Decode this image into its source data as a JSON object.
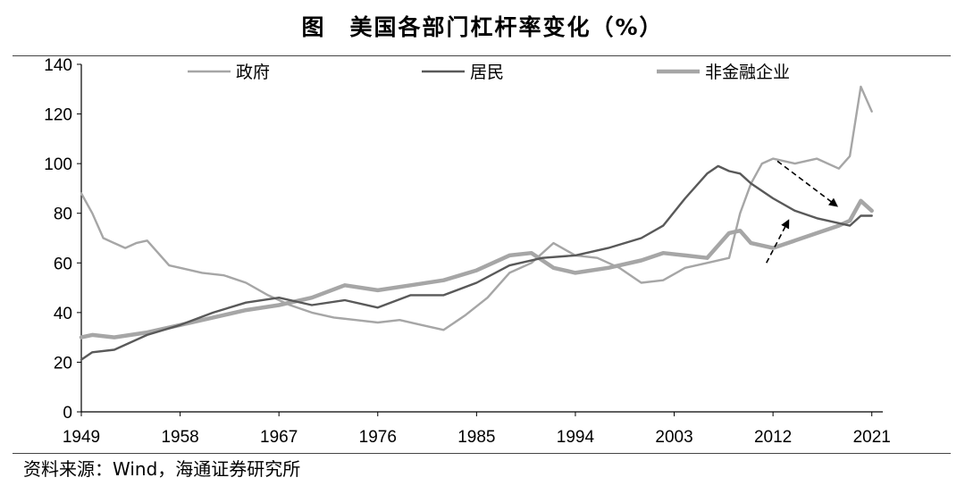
{
  "header": {
    "title": "图　美国各部门杠杆率变化（%）"
  },
  "footer": {
    "source": "资料来源：Wind，海通证券研究所"
  },
  "chart_data": {
    "type": "line",
    "title": "图　美国各部门杠杆率变化（%）",
    "xlabel": "",
    "ylabel": "",
    "xlim": [
      1949,
      2022
    ],
    "ylim": [
      0,
      140
    ],
    "yticks": [
      0,
      20,
      40,
      60,
      80,
      100,
      120,
      140
    ],
    "xticks": [
      1949,
      1958,
      1967,
      1976,
      1985,
      1994,
      2003,
      2012,
      2021
    ],
    "grid": false,
    "legend": "top",
    "series": [
      {
        "name": "政府",
        "color": "#a6a6a6",
        "width": 2.4,
        "x": [
          1949,
          1950,
          1951,
          1952,
          1953,
          1954,
          1955,
          1956,
          1957,
          1958,
          1960,
          1962,
          1964,
          1966,
          1968,
          1970,
          1972,
          1974,
          1976,
          1978,
          1980,
          1982,
          1984,
          1986,
          1988,
          1990,
          1992,
          1994,
          1996,
          1998,
          2000,
          2002,
          2004,
          2006,
          2008,
          2009,
          2010,
          2011,
          2012,
          2014,
          2016,
          2018,
          2019,
          2020,
          2021
        ],
        "values": [
          88,
          80,
          70,
          68,
          66,
          68,
          69,
          64,
          59,
          58,
          56,
          55,
          52,
          47,
          43,
          40,
          38,
          37,
          36,
          37,
          35,
          33,
          39,
          46,
          56,
          60,
          68,
          63,
          62,
          58,
          52,
          53,
          58,
          60,
          62,
          80,
          92,
          100,
          102,
          100,
          102,
          98,
          103,
          131,
          121
        ]
      },
      {
        "name": "居民",
        "color": "#595959",
        "width": 2.4,
        "x": [
          1949,
          1950,
          1952,
          1955,
          1958,
          1961,
          1964,
          1967,
          1970,
          1973,
          1976,
          1979,
          1982,
          1985,
          1988,
          1991,
          1994,
          1997,
          2000,
          2002,
          2004,
          2006,
          2007,
          2008,
          2009,
          2010,
          2012,
          2014,
          2016,
          2018,
          2019,
          2020,
          2021
        ],
        "values": [
          21,
          24,
          25,
          31,
          35,
          40,
          44,
          46,
          43,
          45,
          42,
          47,
          47,
          52,
          59,
          62,
          63,
          66,
          70,
          75,
          86,
          96,
          99,
          97,
          96,
          92,
          86,
          81,
          78,
          76,
          75,
          79,
          79
        ]
      },
      {
        "name": "非金融企业",
        "color": "#a6a6a6",
        "width": 4.5,
        "x": [
          1949,
          1950,
          1952,
          1955,
          1958,
          1961,
          1964,
          1967,
          1970,
          1973,
          1976,
          1979,
          1982,
          1985,
          1988,
          1990,
          1992,
          1994,
          1997,
          2000,
          2002,
          2004,
          2006,
          2008,
          2009,
          2010,
          2012,
          2014,
          2016,
          2018,
          2019,
          2020,
          2021
        ],
        "values": [
          30,
          31,
          30,
          32,
          35,
          38,
          41,
          43,
          46,
          51,
          49,
          51,
          53,
          57,
          63,
          64,
          58,
          56,
          58,
          61,
          64,
          63,
          62,
          72,
          73,
          68,
          66,
          69,
          72,
          75,
          77,
          85,
          81
        ]
      }
    ],
    "annotations": [
      {
        "type": "arrow",
        "style": "dashed",
        "from": [
          2012.4,
          101
        ],
        "to": [
          2017.8,
          83
        ]
      },
      {
        "type": "arrow",
        "style": "dashed",
        "from": [
          2011.4,
          60
        ],
        "to": [
          2013.4,
          77
        ]
      }
    ]
  }
}
